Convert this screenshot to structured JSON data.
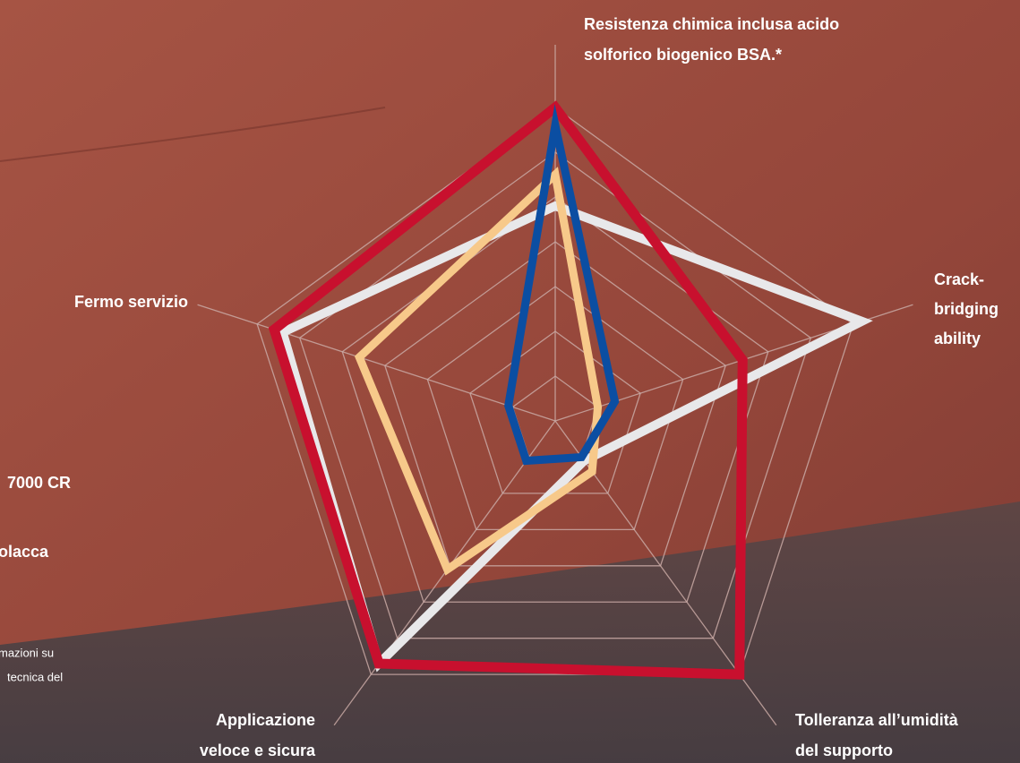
{
  "chart_data": {
    "type": "radar",
    "categories": [
      [
        "Resistenza chimica inclusa acido",
        "solforico biogenico BSA.*"
      ],
      [
        "Crack-",
        "bridging",
        "ability"
      ],
      [
        "Tolleranza all’umidità",
        "del supporto"
      ],
      [
        "Applicazione",
        "veloce e sicura"
      ],
      [
        "Fermo servizio"
      ]
    ],
    "rlim": [
      0,
      7
    ],
    "rticks": [
      1,
      2,
      3,
      4,
      5,
      6,
      7
    ],
    "series": [
      {
        "color": "#e8e8ea",
        "values": [
          4.8,
          7.2,
          1.1,
          6.7,
          6.4
        ]
      },
      {
        "color": "#f7c98a",
        "values": [
          5.5,
          1.0,
          1.4,
          4.1,
          4.6
        ]
      },
      {
        "color": "#c8102e",
        "values": [
          7.0,
          4.4,
          7.0,
          6.7,
          6.6
        ]
      },
      {
        "color": "#0b4ea2",
        "values": [
          6.6,
          1.4,
          1.0,
          1.1,
          1.1
        ]
      }
    ],
    "side_texts": [
      "7000 CR",
      "olacca",
      "mazioni su",
      "tecnica del"
    ]
  }
}
